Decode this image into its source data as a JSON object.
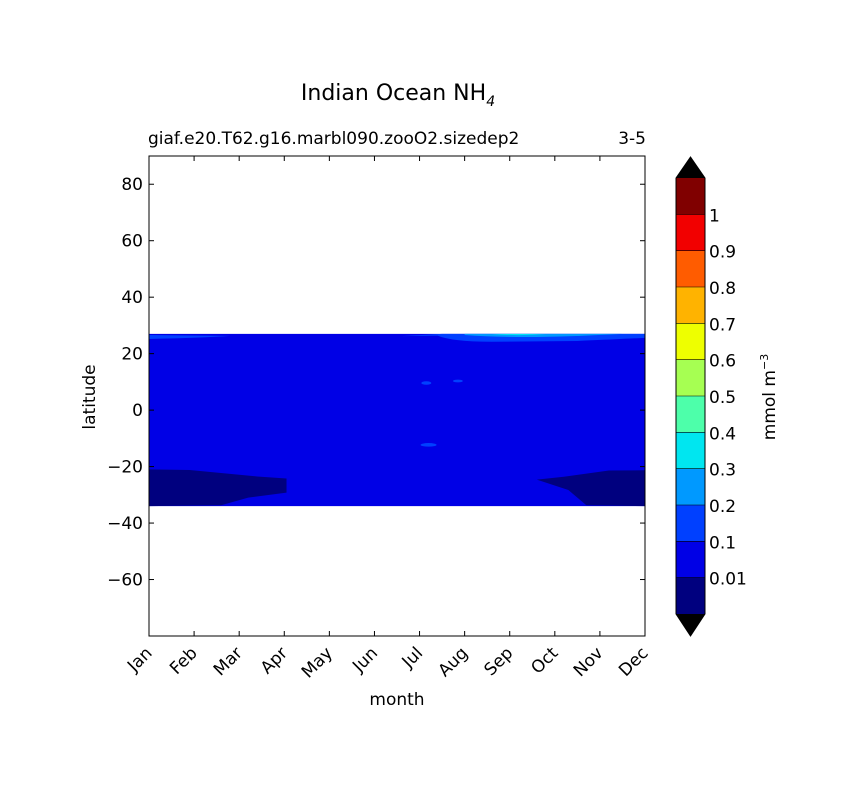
{
  "chart_data": {
    "type": "heatmap",
    "title_main": "Indian Ocean NH",
    "title_sub": "4",
    "subtitle_left": "giaf.e20.T62.g16.marbl090.zooO2.sizedep2",
    "subtitle_right": "3-5",
    "xlabel": "month",
    "ylabel": "latitude",
    "x_categories": [
      "Jan",
      "Feb",
      "Mar",
      "Apr",
      "May",
      "Jun",
      "Jul",
      "Aug",
      "Sep",
      "Oct",
      "Nov",
      "Dec"
    ],
    "ylim": [
      -80,
      90
    ],
    "yticks": [
      -60,
      -40,
      -20,
      0,
      20,
      40,
      60,
      80
    ],
    "data_extent_latitude": [
      -34,
      27
    ],
    "colorbar": {
      "label": "mmol m",
      "label_sup": "−3",
      "levels": [
        0.01,
        0.1,
        0.2,
        0.3,
        0.4,
        0.5,
        0.6,
        0.7,
        0.8,
        0.9,
        1
      ],
      "tick_labels": [
        "0.01",
        "0.1",
        "0.2",
        "0.3",
        "0.4",
        "0.5",
        "0.6",
        "0.7",
        "0.8",
        "0.9",
        "1"
      ],
      "colors": [
        "#00007f",
        "#0000e6",
        "#0040ff",
        "#0099ff",
        "#00e6f0",
        "#4dffaa",
        "#a6ff52",
        "#eeff00",
        "#ffb300",
        "#ff5c00",
        "#f20000",
        "#800000"
      ],
      "extend_min_color": "#000000",
      "extend_max_color": "#000000"
    },
    "regions": [
      {
        "level": 1,
        "month_start": 0,
        "month_end": 11,
        "lat_bottom": -34,
        "lat_top": 27
      },
      {
        "level": 0,
        "shape": "southern-low-left",
        "months": [
          0,
          3.05
        ],
        "lat": [
          -34,
          -21
        ]
      },
      {
        "level": 0,
        "shape": "southern-low-right",
        "months": [
          8.5,
          11
        ],
        "lat": [
          -34,
          -21
        ]
      },
      {
        "level": 2,
        "shape": "northern-band",
        "months": [
          5.5,
          11
        ],
        "lat": [
          24,
          27
        ]
      },
      {
        "level": 3,
        "shape": "northern-peak",
        "months": [
          7.6,
          8.4
        ],
        "lat": [
          26,
          27
        ]
      }
    ]
  }
}
